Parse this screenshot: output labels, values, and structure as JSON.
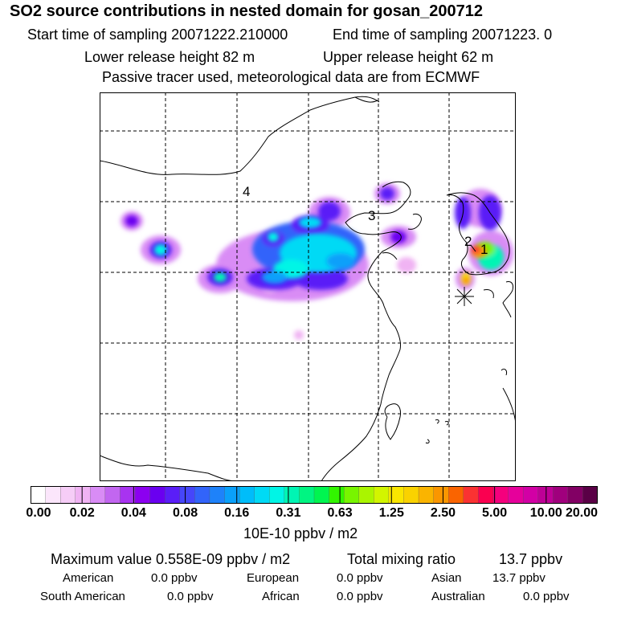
{
  "header": {
    "title": "SO2 source contributions in nested domain for gosan_200712",
    "start": "Start time of sampling 20071222.210000",
    "end": "End time of sampling 20071223.     0",
    "lower": "Lower release height   82 m",
    "upper": "Upper release height   62 m",
    "tracer": "Passive tracer used, meteorological data are from ECMWF"
  },
  "map": {
    "labels": [
      "1",
      "2",
      "3",
      "4"
    ]
  },
  "colorbar": {
    "ticks": [
      "0.00",
      "0.02",
      "0.04",
      "0.08",
      "0.16",
      "0.31",
      "0.63",
      "1.25",
      "2.50",
      "5.00",
      "10.00",
      "20.00"
    ],
    "colors": [
      "#ffffff",
      "#fbe6fb",
      "#f6cdf7",
      "#f0b3f3",
      "#d98cf5",
      "#c266f0",
      "#a833f0",
      "#8c00f0",
      "#6a00f0",
      "#5a1ef7",
      "#4646fa",
      "#3264fa",
      "#1e82fa",
      "#0aa0fa",
      "#00bdfa",
      "#00daf5",
      "#00f5e6",
      "#00f5b4",
      "#00f582",
      "#00f550",
      "#32f500",
      "#78f500",
      "#aaf500",
      "#d2f500",
      "#fae600",
      "#fad200",
      "#fab400",
      "#fa9600",
      "#fa6400",
      "#fa3232",
      "#fa0050",
      "#f5007d",
      "#e6009b",
      "#d200a5",
      "#be0096",
      "#a0007d",
      "#820064",
      "#5a0046"
    ],
    "unit": "10E-10 ppbv / m2"
  },
  "footer": {
    "max": "Maximum value  0.558E-09 ppbv / m2",
    "total_label": "Total mixing ratio",
    "total_value": "13.7 ppbv",
    "regions": [
      {
        "name": "American",
        "value": "0.0 ppbv"
      },
      {
        "name": "European",
        "value": "0.0 ppbv"
      },
      {
        "name": "Asian",
        "value": "13.7 ppbv"
      },
      {
        "name": "South American",
        "value": "0.0 ppbv"
      },
      {
        "name": "African",
        "value": "0.0 ppbv"
      },
      {
        "name": "Australian",
        "value": "0.0 ppbv"
      }
    ]
  }
}
